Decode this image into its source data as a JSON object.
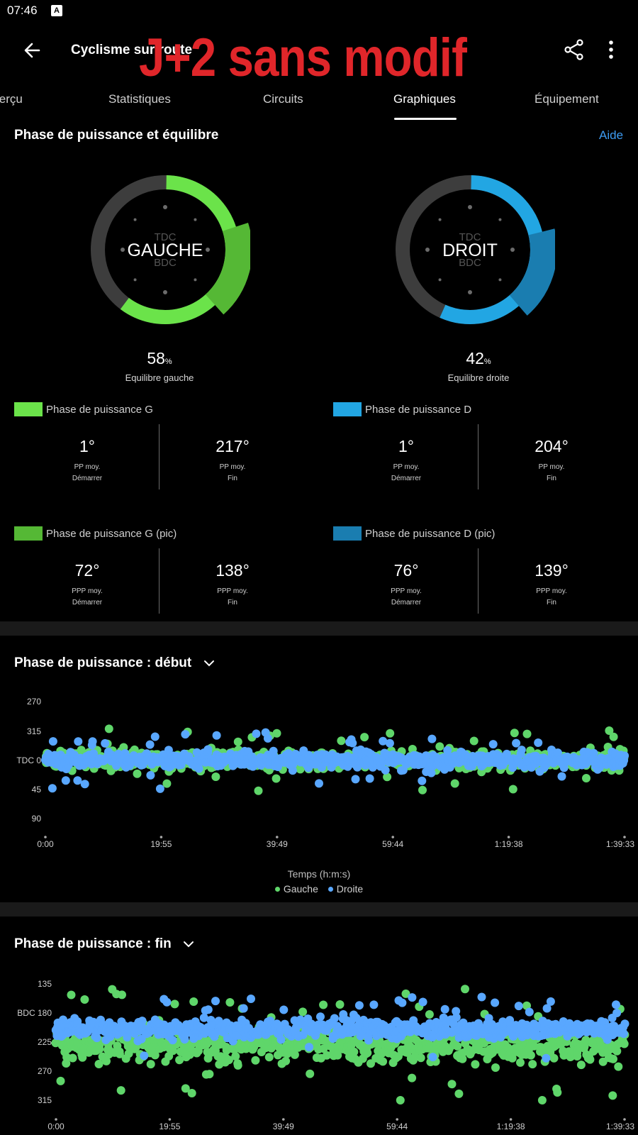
{
  "status_bar": {
    "time": "07:46",
    "notification_icon": "A"
  },
  "app_bar": {
    "title": "Cyclisme sur route",
    "overlay": "J+2 sans modif"
  },
  "tabs": [
    {
      "label": "Aperçu",
      "active": false
    },
    {
      "label": "Statistiques",
      "active": false
    },
    {
      "label": "Circuits",
      "active": false
    },
    {
      "label": "Graphiques",
      "active": true
    },
    {
      "label": "Équipement",
      "active": false
    }
  ],
  "power_section": {
    "title": "Phase de puissance et équilibre",
    "help": "Aide",
    "left": {
      "name": "GAUCHE",
      "tdc": "TDC",
      "bdc": "BDC",
      "balance": "58",
      "unit": "%",
      "balance_label": "Equilibre gauche",
      "color": "#6be34a",
      "peak_color": "#55b835"
    },
    "right": {
      "name": "DROIT",
      "tdc": "TDC",
      "bdc": "BDC",
      "balance": "42",
      "unit": "%",
      "balance_label": "Equilibre droite",
      "color": "#22a6e3",
      "peak_color": "#1a7db0"
    }
  },
  "metrics": {
    "left_phase": {
      "label": "Phase de puissance G",
      "start": {
        "value": "1°",
        "sub1": "PP moy.",
        "sub2": "Démarrer"
      },
      "end": {
        "value": "217°",
        "sub1": "PP moy.",
        "sub2": "Fin"
      }
    },
    "right_phase": {
      "label": "Phase de puissance D",
      "start": {
        "value": "1°",
        "sub1": "PP moy.",
        "sub2": "Démarrer"
      },
      "end": {
        "value": "204°",
        "sub1": "PP moy.",
        "sub2": "Fin"
      }
    },
    "left_peak": {
      "label": "Phase de puissance G (pic)",
      "start": {
        "value": "72°",
        "sub1": "PPP moy.",
        "sub2": "Démarrer"
      },
      "end": {
        "value": "138°",
        "sub1": "PPP moy.",
        "sub2": "Fin"
      }
    },
    "right_peak": {
      "label": "Phase de puissance D (pic)",
      "start": {
        "value": "76°",
        "sub1": "PPP moy.",
        "sub2": "Démarrer"
      },
      "end": {
        "value": "139°",
        "sub1": "PPP moy.",
        "sub2": "Fin"
      }
    }
  },
  "chart_start_title": "Phase de puissance : début",
  "chart_end_title": "Phase de puissance : fin",
  "chart_data": [
    {
      "type": "scatter",
      "title": "Phase de puissance : début",
      "xlabel": "Temps (h:m:s)",
      "x_ticks": [
        "0:00",
        "19:55",
        "39:49",
        "59:44",
        "1:19:38",
        "1:39:33"
      ],
      "y_ticks": [
        "270",
        "315",
        "TDC 0",
        "45",
        "90"
      ],
      "series": [
        {
          "name": "Gauche",
          "color": "#5fd66a",
          "center": 0,
          "spread": 10
        },
        {
          "name": "Droite",
          "color": "#59a7ff",
          "center": 0,
          "spread": 9
        }
      ]
    },
    {
      "type": "scatter",
      "title": "Phase de puissance : fin",
      "x_ticks": [
        "0:00",
        "19:55",
        "39:49",
        "59:44",
        "1:19:38",
        "1:39:33"
      ],
      "y_ticks": [
        "135",
        "BDC 180",
        "225",
        "270",
        "315"
      ],
      "series": [
        {
          "name": "Gauche",
          "color": "#5fd66a",
          "center": 230,
          "spread": 18
        },
        {
          "name": "Droite",
          "color": "#59a7ff",
          "center": 205,
          "spread": 10
        }
      ]
    }
  ],
  "legend": {
    "left": "Gauche",
    "right": "Droite"
  }
}
